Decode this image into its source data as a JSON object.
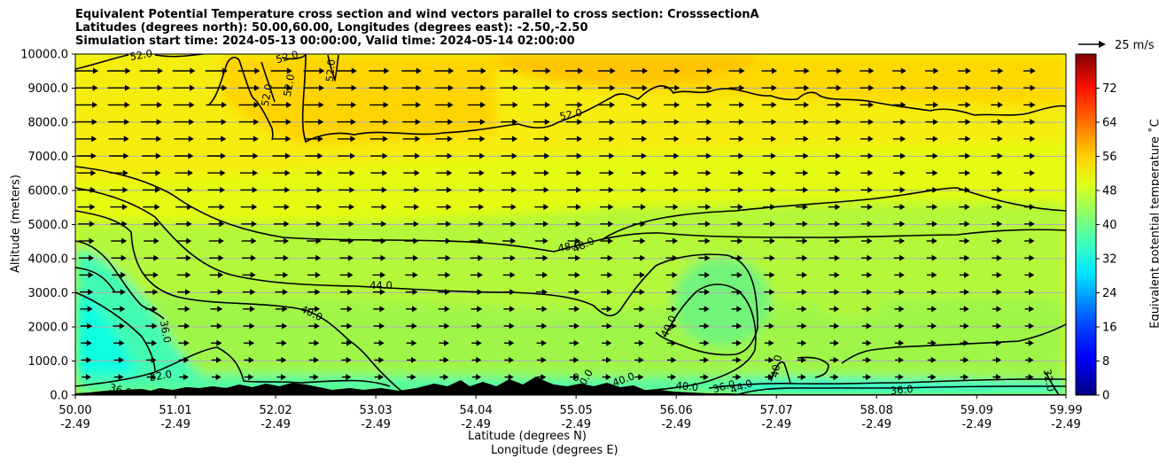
{
  "title_lines": [
    "Equivalent Potential Temperature cross section and wind vectors parallel to cross section: CrosssectionA",
    "Latitudes (degrees north): 50.00,60.00, Longitudes (degrees east): -2.50,-2.50",
    "Simulation start time: 2024-05-13 00:00:00, Valid time: 2024-05-14 02:00:00"
  ],
  "quiver_key": "25 m/s",
  "colorbar": {
    "label": "Equivalent potential temperature ˚C",
    "ticks": [
      "0",
      "8",
      "16",
      "24",
      "32",
      "40",
      "48",
      "56",
      "64",
      "72"
    ],
    "range": [
      0,
      80
    ]
  },
  "chart_data": {
    "type": "contour",
    "xlabel_line1": "Latitude (degrees N)",
    "xlabel_line2": "Longitude (degrees E)",
    "ylabel": "Altitude (meters)",
    "ylim": [
      0,
      10000
    ],
    "xlim": [
      50.0,
      59.99
    ],
    "grid": "horizontal",
    "y_ticks": [
      "0.0",
      "1000.0",
      "2000.0",
      "3000.0",
      "4000.0",
      "5000.0",
      "6000.0",
      "7000.0",
      "8000.0",
      "9000.0",
      "10000.0"
    ],
    "x_ticks": [
      {
        "lat": "50.00",
        "lon": "-2.49"
      },
      {
        "lat": "51.01",
        "lon": "-2.49"
      },
      {
        "lat": "52.02",
        "lon": "-2.49"
      },
      {
        "lat": "53.03",
        "lon": "-2.49"
      },
      {
        "lat": "54.04",
        "lon": "-2.49"
      },
      {
        "lat": "55.05",
        "lon": "-2.49"
      },
      {
        "lat": "56.06",
        "lon": "-2.49"
      },
      {
        "lat": "57.07",
        "lon": "-2.49"
      },
      {
        "lat": "58.08",
        "lon": "-2.49"
      },
      {
        "lat": "59.09",
        "lon": "-2.49"
      },
      {
        "lat": "59.99",
        "lon": "-2.49"
      }
    ],
    "contour_labels": [
      "52.0",
      "52.0",
      "52.0",
      "52.0",
      "52.0",
      "52.0",
      "48.0",
      "48.0",
      "44.0",
      "40.0",
      "40.0",
      "40.0",
      "40.0",
      "40.0",
      "40.0",
      "36.0",
      "36.0",
      "36.0",
      "36.0",
      "32.0",
      "32.0",
      "44.0",
      "40.0",
      "0"
    ]
  }
}
